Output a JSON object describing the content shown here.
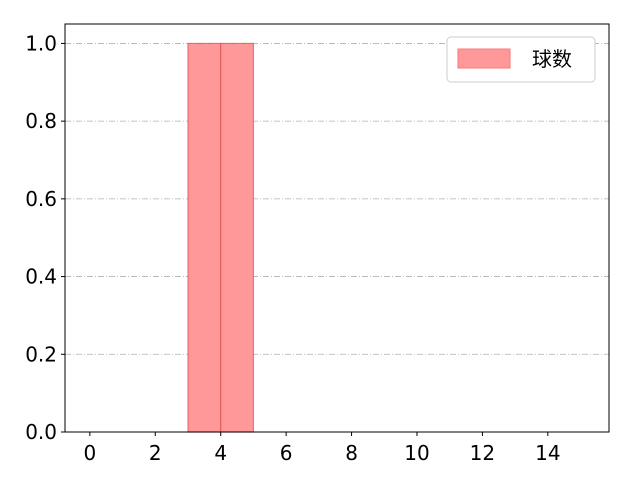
{
  "chart_data": {
    "type": "bar",
    "title": "",
    "xlabel": "",
    "ylabel": "",
    "bins": [
      {
        "x0": 3,
        "x1": 4,
        "value": 1.0
      },
      {
        "x0": 4,
        "x1": 5,
        "value": 1.0
      }
    ],
    "xlim": [
      -0.76,
      15.87
    ],
    "ylim": [
      0,
      1.05
    ],
    "xticks": [
      0,
      2,
      4,
      6,
      8,
      10,
      12,
      14
    ],
    "xtick_labels": [
      "0",
      "2",
      "4",
      "6",
      "8",
      "10",
      "12",
      "14"
    ],
    "yticks": [
      0,
      0.2,
      0.4,
      0.6,
      0.8,
      1.0
    ],
    "ytick_labels": [
      "0.0",
      "0.2",
      "0.4",
      "0.6",
      "0.8",
      "1.0"
    ],
    "grid": "y, dash-dot",
    "legend": {
      "position": "top-right",
      "entries": [
        "球数"
      ]
    },
    "colors": {
      "bar_fill": "#ff9999",
      "bar_edge": "#e05050",
      "grid": "#b0b0b0"
    }
  }
}
